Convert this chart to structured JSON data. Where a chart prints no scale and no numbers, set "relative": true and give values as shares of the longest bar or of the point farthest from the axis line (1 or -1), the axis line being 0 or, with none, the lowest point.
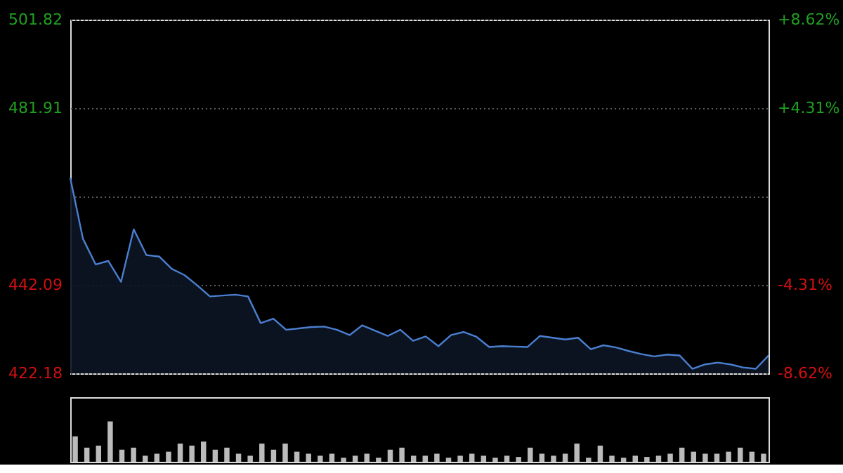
{
  "chart_data": [
    {
      "type": "area",
      "categories": [
        null,
        null,
        null,
        null,
        null,
        null,
        null,
        null,
        null,
        null,
        null,
        null,
        null,
        null,
        null,
        null,
        null,
        null,
        null,
        null,
        null,
        null,
        null,
        null,
        null,
        null,
        null,
        null,
        null,
        null,
        null,
        null,
        null,
        null,
        null,
        null,
        null,
        null,
        null,
        null,
        null,
        null,
        null,
        null,
        null,
        null,
        null,
        null,
        null,
        null,
        null,
        null,
        null,
        null,
        null,
        null
      ],
      "series": [
        {
          "color": "#4a7fd0",
          "values": [
            466.2,
            452.5,
            446.7,
            447.5,
            442.8,
            454.6,
            448.8,
            448.5,
            445.7,
            444.3,
            442.0,
            439.5,
            439.7,
            439.9,
            439.5,
            433.5,
            434.5,
            432.0,
            432.3,
            432.6,
            432.7,
            432.0,
            430.8,
            433.0,
            431.8,
            430.6,
            432.0,
            429.5,
            430.5,
            428.3,
            430.8,
            431.5,
            430.4,
            428.1,
            428.3,
            428.2,
            428.1,
            430.6,
            430.2,
            429.8,
            430.2,
            427.6,
            428.5,
            428.0,
            427.2,
            426.5,
            426.0,
            426.4,
            426.2,
            423.2,
            424.2,
            424.6,
            424.2,
            423.5,
            423.2,
            426.2
          ]
        }
      ],
      "ylim": [
        422.18,
        501.82
      ],
      "yticks": [
        422.18,
        442.09,
        {
          "value": 462.0,
          "label": null
        },
        481.91,
        501.82
      ],
      "y2lim": [
        -8.62,
        8.62
      ],
      "y2ticks": [
        {
          "value": -8.62,
          "label": "-8.62%"
        },
        {
          "value": -4.31,
          "label": "-4.31%"
        },
        {
          "value": 0,
          "label": null
        },
        {
          "value": 4.31,
          "label": "+4.31%"
        },
        {
          "value": 8.62,
          "label": "+8.62%"
        }
      ],
      "grid": true,
      "tick_labels": "y"
    },
    {
      "type": "bar",
      "relative": true,
      "color": "#bbbbbb",
      "tick_labels": false,
      "categories": [
        null,
        null,
        null,
        null,
        null,
        null,
        null,
        null,
        null,
        null,
        null,
        null,
        null,
        null,
        null,
        null,
        null,
        null,
        null,
        null,
        null,
        null,
        null,
        null,
        null,
        null,
        null,
        null,
        null,
        null,
        null,
        null,
        null,
        null,
        null,
        null,
        null,
        null,
        null,
        null,
        null,
        null,
        null,
        null,
        null,
        null,
        null,
        null,
        null,
        null,
        null,
        null,
        null,
        null,
        null,
        null,
        null,
        null,
        null,
        null
      ],
      "values": [
        0.63,
        0.35,
        0.4,
        1.0,
        0.3,
        0.35,
        0.15,
        0.2,
        0.25,
        0.45,
        0.4,
        0.5,
        0.3,
        0.35,
        0.2,
        0.15,
        0.45,
        0.3,
        0.45,
        0.25,
        0.2,
        0.15,
        0.2,
        0.1,
        0.15,
        0.2,
        0.1,
        0.3,
        0.35,
        0.15,
        0.15,
        0.2,
        0.1,
        0.15,
        0.2,
        0.15,
        0.1,
        0.15,
        0.12,
        0.35,
        0.2,
        0.15,
        0.2,
        0.45,
        0.1,
        0.4,
        0.15,
        0.1,
        0.15,
        0.12,
        0.15,
        0.2,
        0.35,
        0.25,
        0.2,
        0.2,
        0.25,
        0.35,
        0.25,
        0.2
      ]
    }
  ]
}
